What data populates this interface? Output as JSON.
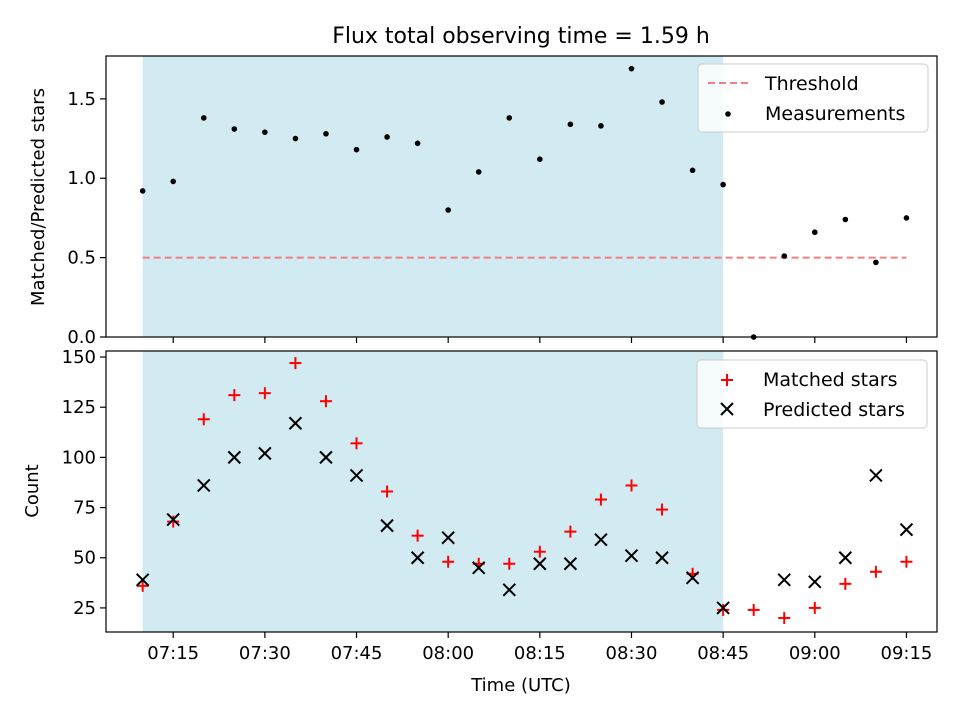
{
  "figure": {
    "title": "Flux total observing time = 1.59 h"
  },
  "colors": {
    "shade": "#add8e6",
    "threshold": "#f08080",
    "measurement": "#000000",
    "matched": "#ff0000",
    "predicted": "#000000"
  },
  "chart_data": [
    {
      "type": "scatter",
      "panel": "top",
      "xlabel": "",
      "ylabel": "Matched/Predicted stars",
      "ylim": [
        0,
        1.77
      ],
      "yticks": [
        0.0,
        0.5,
        1.0,
        1.5
      ],
      "yticklabels": [
        "0.0",
        "0.5",
        "1.0",
        "1.5"
      ],
      "shaded_region": {
        "x_start": "07:10",
        "x_end": "08:45"
      },
      "threshold": {
        "name": "Threshold",
        "value": 0.5,
        "x_start": "07:10",
        "x_end": "09:15",
        "style": "dashed"
      },
      "legend": {
        "position": "top-right",
        "entries": [
          "Threshold",
          "Measurements"
        ]
      },
      "series": [
        {
          "name": "Measurements",
          "x": [
            "07:10",
            "07:15",
            "07:20",
            "07:25",
            "07:30",
            "07:35",
            "07:40",
            "07:45",
            "07:50",
            "07:55",
            "08:00",
            "08:05",
            "08:10",
            "08:15",
            "08:20",
            "08:25",
            "08:30",
            "08:35",
            "08:40",
            "08:45",
            "08:50",
            "08:55",
            "09:00",
            "09:05",
            "09:10",
            "09:15"
          ],
          "y": [
            0.92,
            0.98,
            1.38,
            1.31,
            1.29,
            1.25,
            1.28,
            1.18,
            1.26,
            1.22,
            0.8,
            1.04,
            1.38,
            1.12,
            1.34,
            1.33,
            1.69,
            1.48,
            1.05,
            0.96,
            0.0,
            0.51,
            0.66,
            0.74,
            0.47,
            0.75
          ]
        }
      ]
    },
    {
      "type": "scatter",
      "panel": "bottom",
      "xlabel": "Time (UTC)",
      "ylabel": "Count",
      "ylim": [
        13,
        153
      ],
      "yticks": [
        25,
        50,
        75,
        100,
        125,
        150
      ],
      "yticklabels": [
        "25",
        "50",
        "75",
        "100",
        "125",
        "150"
      ],
      "xticks": [
        "07:15",
        "07:30",
        "07:45",
        "08:00",
        "08:15",
        "08:30",
        "08:45",
        "09:00",
        "09:15"
      ],
      "xlim": [
        "07:04",
        "09:20"
      ],
      "shaded_region": {
        "x_start": "07:10",
        "x_end": "08:45"
      },
      "legend": {
        "position": "top-right",
        "entries": [
          "Matched stars",
          "Predicted stars"
        ]
      },
      "series": [
        {
          "name": "Matched stars",
          "marker": "plus",
          "x": [
            "07:10",
            "07:15",
            "07:20",
            "07:25",
            "07:30",
            "07:35",
            "07:40",
            "07:45",
            "07:50",
            "07:55",
            "08:00",
            "08:05",
            "08:10",
            "08:15",
            "08:20",
            "08:25",
            "08:30",
            "08:35",
            "08:40",
            "08:45",
            "08:50",
            "08:55",
            "09:00",
            "09:05",
            "09:10",
            "09:15"
          ],
          "y": [
            36,
            68,
            119,
            131,
            132,
            147,
            128,
            107,
            83,
            61,
            48,
            47,
            47,
            53,
            63,
            79,
            86,
            74,
            42,
            24,
            24,
            20,
            25,
            37,
            43,
            48
          ]
        },
        {
          "name": "Predicted stars",
          "marker": "x",
          "x": [
            "07:10",
            "07:15",
            "07:20",
            "07:25",
            "07:30",
            "07:35",
            "07:40",
            "07:45",
            "07:50",
            "07:55",
            "08:00",
            "08:05",
            "08:10",
            "08:15",
            "08:20",
            "08:25",
            "08:30",
            "08:35",
            "08:40",
            "08:45",
            "08:55",
            "09:00",
            "09:05",
            "09:10",
            "09:15"
          ],
          "y": [
            39,
            69,
            86,
            100,
            102,
            117,
            100,
            91,
            66,
            50,
            60,
            45,
            34,
            47,
            47,
            59,
            51,
            50,
            40,
            25,
            39,
            38,
            50,
            91,
            64
          ]
        }
      ]
    }
  ]
}
